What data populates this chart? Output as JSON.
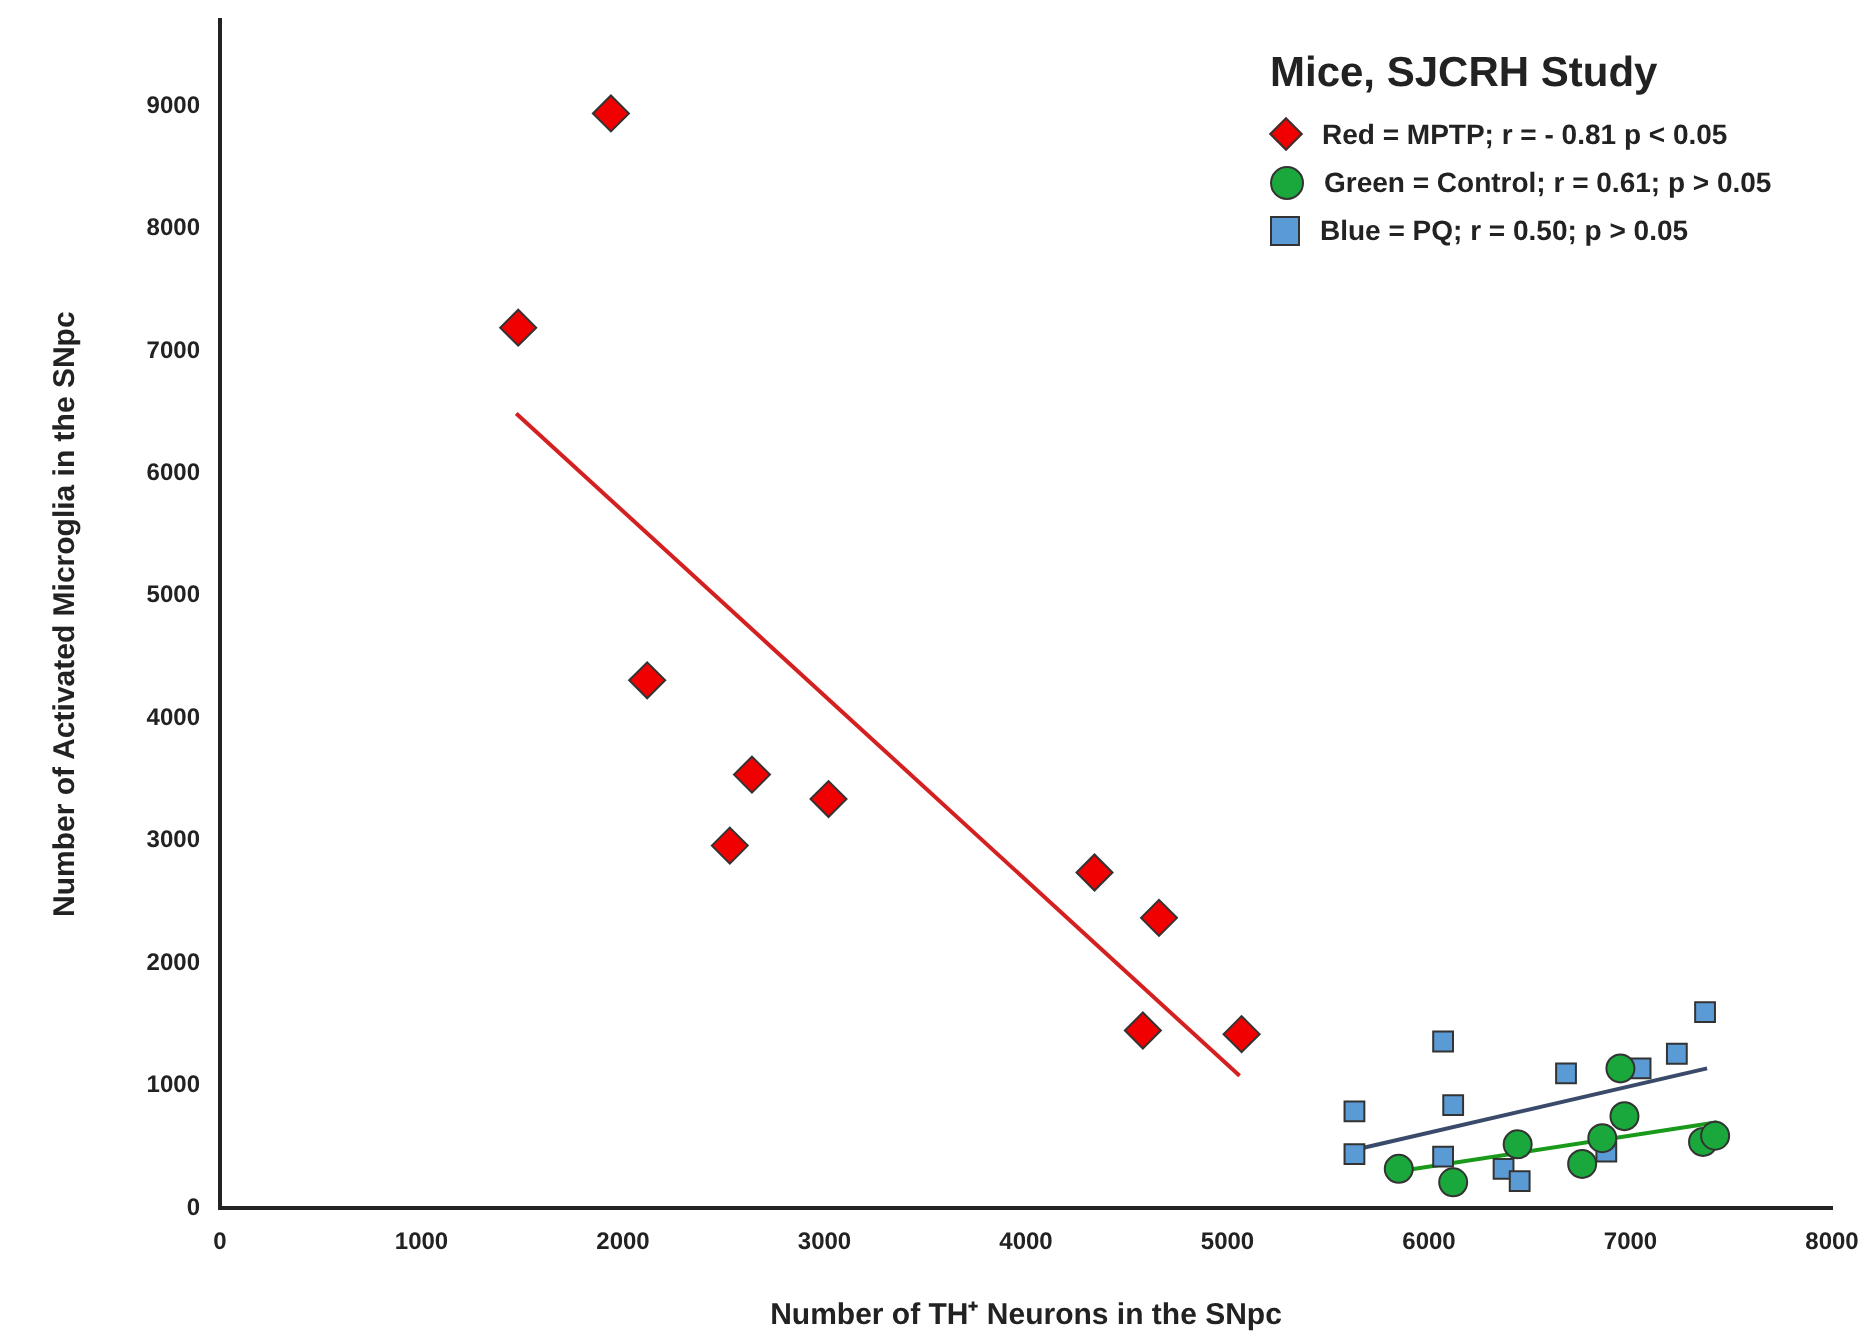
{
  "chart_data": {
    "type": "scatter",
    "xlabel": "Number of TH⁺ Neurons in the SNpc",
    "ylabel": "Number of Activated Microglia in the SNpc",
    "legend_title": "Mice, SJCRH Study",
    "legend": "top right",
    "grid": false,
    "xlim": [
      0,
      8000
    ],
    "xticks": [
      0,
      1000,
      2000,
      3000,
      4000,
      5000,
      6000,
      7000,
      8000
    ],
    "ylim": [
      0,
      9700
    ],
    "yticks": [
      0,
      1000,
      2000,
      3000,
      4000,
      5000,
      6000,
      7000,
      8000,
      9000
    ],
    "series": [
      {
        "name": "Red = MPTP; r = - 0.81 p < 0.05",
        "type": "scatter",
        "marker": "diamond",
        "color": "#f00000",
        "x": [
          1480,
          1940,
          2120,
          2530,
          2640,
          3020,
          4340,
          4580,
          4660,
          5070
        ],
        "values": [
          7190,
          8940,
          4310,
          2960,
          3540,
          3340,
          2740,
          1450,
          2370,
          1420
        ]
      },
      {
        "name": "Green = Control; r = 0.61; p > 0.05",
        "type": "scatter",
        "marker": "circle",
        "color": "#1aa83c",
        "x": [
          5850,
          6120,
          6440,
          6760,
          6860,
          6950,
          6970,
          7360,
          7420
        ],
        "values": [
          320,
          210,
          520,
          360,
          570,
          1140,
          750,
          540,
          590
        ]
      },
      {
        "name": "Blue = PQ; r = 0.50; p > 0.05",
        "type": "scatter",
        "marker": "square",
        "color": "#5b9bd5",
        "x": [
          5630,
          5630,
          6070,
          6120,
          6070,
          6370,
          6450,
          6680,
          6880,
          7050,
          7230,
          7370
        ],
        "values": [
          790,
          440,
          1360,
          840,
          420,
          320,
          220,
          1100,
          460,
          1140,
          1260,
          1600
        ]
      },
      {
        "type": "line",
        "color": "#d42020",
        "x": [
          1470,
          5060
        ],
        "values": [
          6490,
          1080
        ]
      },
      {
        "type": "line",
        "color": "#3a4a6b",
        "x": [
          5670,
          7380
        ],
        "values": [
          490,
          1140
        ]
      },
      {
        "type": "line",
        "color": "#1a9a1a",
        "x": [
          5850,
          7430
        ],
        "values": [
          300,
          700
        ]
      }
    ]
  }
}
